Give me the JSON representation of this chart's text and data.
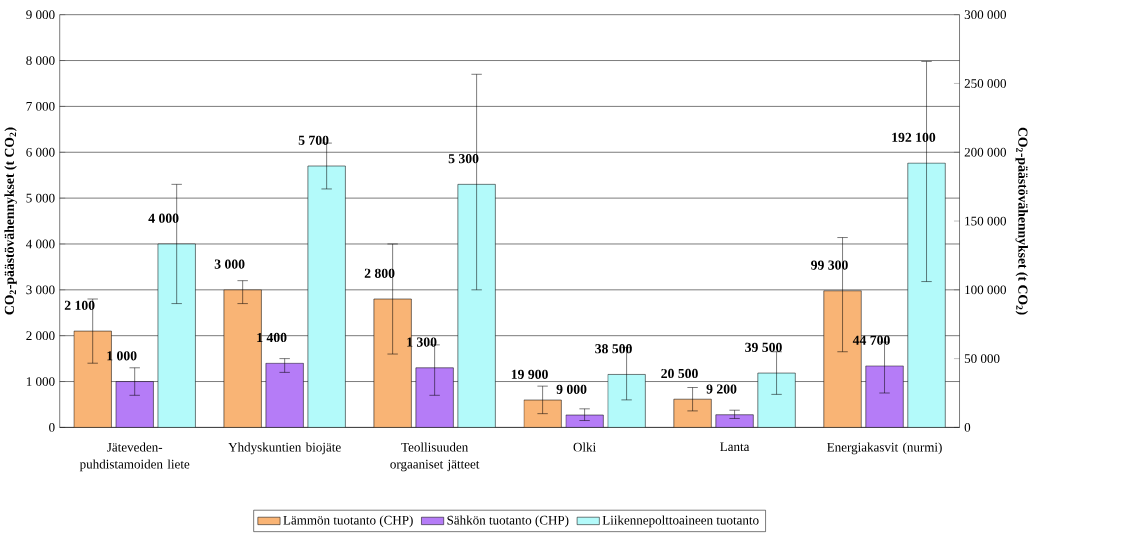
{
  "chart_data": {
    "type": "bar",
    "categories": [
      "Jäteveden-puhdistamoiden liete",
      "Yhdyskuntien biojäte",
      "Teollisuuden orgaaniset jätteet",
      "Olki",
      "Lanta",
      "Energiakasvit (nurmi)"
    ],
    "ylabel": "CO$_{2}$-päästövähennykset (t CO$_{2}$)",
    "y2label": "CO$_{2}$-päästövähennykset (t CO$_{2}$)",
    "ylim": [
      0,
      9000
    ],
    "yticks": [
      0,
      {
        "value": 1000,
        "label": "1 000"
      },
      {
        "value": 2000,
        "label": "2 000"
      },
      {
        "value": 3000,
        "label": "3 000"
      },
      {
        "value": 4000,
        "label": "4 000"
      },
      {
        "value": 5000,
        "label": "5 000"
      },
      {
        "value": 6000,
        "label": "6 000"
      },
      {
        "value": 7000,
        "label": "7 000"
      },
      {
        "value": 8000,
        "label": "8 000"
      },
      {
        "value": 9000,
        "label": "9 000"
      }
    ],
    "y2lim": [
      0,
      300000
    ],
    "y2ticks": [
      0,
      {
        "value": 50000,
        "label": "50 000"
      },
      {
        "value": 100000,
        "label": "100 000"
      },
      {
        "value": 150000,
        "label": "150 000"
      },
      {
        "value": 200000,
        "label": "200 000"
      },
      {
        "value": 250000,
        "label": "250 000"
      },
      {
        "value": 300000,
        "label": "300 000"
      }
    ],
    "grid": "y",
    "legend": "bottom",
    "series": [
      {
        "name": "Lämmön tuotanto (CHP)",
        "color": "#f9b475",
        "values": [
          2100,
          3000,
          2800,
          null,
          null,
          null
        ],
        "errors": [
          [
            1400,
            2800
          ],
          [
            2700,
            3200
          ],
          [
            1600,
            4000
          ],
          null,
          null,
          null
        ],
        "value_labels": [
          "2 100",
          "3 000",
          "2 800",
          null,
          null,
          null
        ]
      },
      {
        "name": "Sähkön tuotanto (CHP)",
        "color": "#b57cf7",
        "values": [
          1000,
          1400,
          1300,
          null,
          null,
          null
        ],
        "errors": [
          [
            700,
            1300
          ],
          [
            1200,
            1500
          ],
          [
            700,
            1800
          ],
          null,
          null,
          null
        ],
        "value_labels": [
          "1 000",
          "1 400",
          "1 300",
          null,
          null,
          null
        ]
      },
      {
        "name": "Liikennepolttoaineen tuotanto",
        "color": "#b3fafa",
        "values": [
          4000,
          5700,
          5300,
          null,
          null,
          null
        ],
        "errors": [
          [
            2700,
            5300
          ],
          [
            5200,
            6200
          ],
          [
            3000,
            7700
          ],
          null,
          null,
          null
        ],
        "value_labels": [
          "4 000",
          "5 700",
          "5 300",
          null,
          null,
          null
        ]
      },
      {
        "axis": "y2",
        "color": "#f9b475",
        "values": [
          null,
          null,
          null,
          19900,
          20500,
          99300
        ],
        "errors": [
          null,
          null,
          null,
          [
            10000,
            30000
          ],
          [
            12000,
            29000
          ],
          [
            55000,
            138000
          ]
        ],
        "value_labels": [
          null,
          null,
          null,
          "19 900",
          "20 500",
          "99 300"
        ]
      },
      {
        "axis": "y2",
        "color": "#b57cf7",
        "values": [
          null,
          null,
          null,
          9000,
          9200,
          44700
        ],
        "errors": [
          null,
          null,
          null,
          [
            5000,
            13500
          ],
          [
            6500,
            12500
          ],
          [
            25000,
            62000
          ]
        ],
        "value_labels": [
          null,
          null,
          null,
          "9 000",
          "9 200",
          "44 700"
        ]
      },
      {
        "axis": "y2",
        "color": "#b3fafa",
        "values": [
          null,
          null,
          null,
          38500,
          39500,
          192100
        ],
        "errors": [
          null,
          null,
          null,
          [
            20000,
            58000
          ],
          [
            24000,
            55000
          ],
          [
            106000,
            266000
          ]
        ],
        "value_labels": [
          null,
          null,
          null,
          "38 500",
          "39 500",
          "192 100"
        ]
      }
    ]
  }
}
